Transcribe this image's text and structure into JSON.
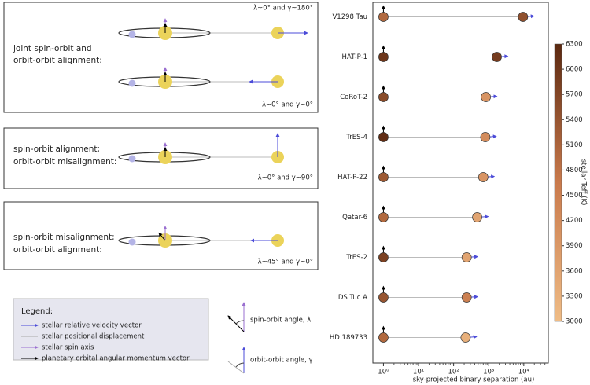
{
  "panels": [
    {
      "lines": [
        "joint spin-orbit and",
        "orbit-orbit alignment:"
      ],
      "captions": [
        "λ~0° and γ~180°",
        "λ~0° and γ~0°"
      ]
    },
    {
      "lines": [
        "spin-orbit alignment;",
        "orbit-orbit misalignment:"
      ],
      "captions": [
        "λ~0° and γ~90°"
      ]
    },
    {
      "lines": [
        "spin-orbit misalignment;",
        "orbit-orbit alignment:"
      ],
      "captions": [
        "λ~45° and γ~0°"
      ]
    }
  ],
  "legend": {
    "title": "Legend:",
    "entries": [
      "stellar relative velocity vector",
      "stellar positional displacement",
      "stellar spin axis",
      "planetary orbital angular momentum vector"
    ]
  },
  "angles": [
    "spin-orbit angle, λ",
    "orbit-orbit angle, γ"
  ],
  "chart_data": {
    "type": "scatter",
    "x_label": "sky-projected binary separation (au)",
    "colorbar_label": "stellar Teff (K)",
    "categories": [
      "V1298 Tau",
      "HAT-P-1",
      "CoRoT-2",
      "TrES-4",
      "HAT-P-22",
      "Qatar-6",
      "TrES-2",
      "DS Tuc A",
      "HD 189733"
    ],
    "host_x": [
      1,
      1,
      1,
      1,
      1,
      1,
      1,
      1,
      1
    ],
    "companion_x": [
      9500,
      1700,
      830,
      800,
      700,
      470,
      235,
      235,
      220
    ],
    "host_teff": [
      5000,
      6000,
      5600,
      6200,
      5300,
      5000,
      5800,
      5400,
      5000
    ],
    "companion_teff": [
      5500,
      5900,
      4000,
      4200,
      4000,
      3600,
      3600,
      4500,
      3300
    ],
    "xscale": "log",
    "xlim": [
      0.5,
      50000
    ],
    "xticks": [
      {
        "value": 1,
        "label": "10⁰"
      },
      {
        "value": 10,
        "label": "10¹"
      },
      {
        "value": 100,
        "label": "10²"
      },
      {
        "value": 1000,
        "label": "10³"
      },
      {
        "value": 10000,
        "label": "10⁴"
      }
    ],
    "clim": [
      3000,
      6300
    ],
    "cticks": [
      3000,
      3300,
      3600,
      3900,
      4200,
      4500,
      4800,
      5100,
      5400,
      5700,
      6000,
      6300
    ]
  }
}
